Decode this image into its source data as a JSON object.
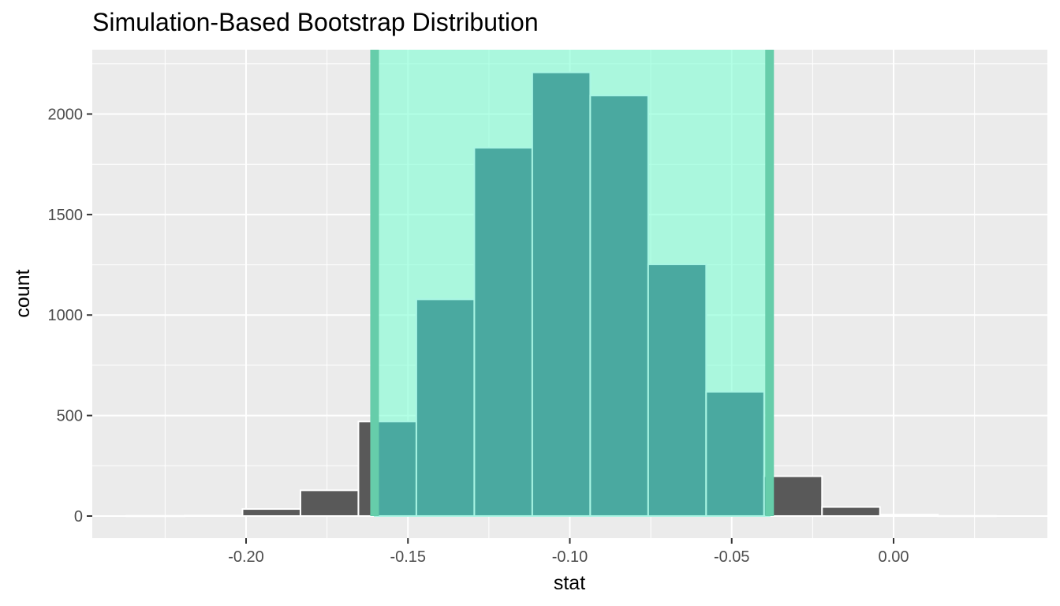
{
  "chart_data": {
    "type": "bar",
    "title": "Simulation-Based Bootstrap Distribution",
    "xlabel": "stat",
    "ylabel": "count",
    "xlim": [
      -0.2475,
      0.0475
    ],
    "ylim": [
      -110,
      2320
    ],
    "x_ticks": [
      {
        "value": -0.2,
        "label": "-0.20"
      },
      {
        "value": -0.15,
        "label": "-0.15"
      },
      {
        "value": -0.1,
        "label": "-0.10"
      },
      {
        "value": -0.05,
        "label": "-0.05"
      },
      {
        "value": 0.0,
        "label": "0.00"
      }
    ],
    "y_ticks": [
      {
        "value": 0,
        "label": "0"
      },
      {
        "value": 500,
        "label": "500"
      },
      {
        "value": 1000,
        "label": "1000"
      },
      {
        "value": 1500,
        "label": "1500"
      },
      {
        "value": 2000,
        "label": "2000"
      }
    ],
    "bins": [
      {
        "x0": -0.2369,
        "x1": -0.219,
        "count": 1
      },
      {
        "x0": -0.219,
        "x1": -0.2011,
        "count": 2
      },
      {
        "x0": -0.2011,
        "x1": -0.1832,
        "count": 35
      },
      {
        "x0": -0.1832,
        "x1": -0.1653,
        "count": 128
      },
      {
        "x0": -0.1653,
        "x1": -0.1474,
        "count": 470
      },
      {
        "x0": -0.1474,
        "x1": -0.1295,
        "count": 1078
      },
      {
        "x0": -0.1295,
        "x1": -0.1116,
        "count": 1832
      },
      {
        "x0": -0.1116,
        "x1": -0.0937,
        "count": 2207
      },
      {
        "x0": -0.0937,
        "x1": -0.0758,
        "count": 2092
      },
      {
        "x0": -0.0758,
        "x1": -0.0579,
        "count": 1252
      },
      {
        "x0": -0.0579,
        "x1": -0.04,
        "count": 618
      },
      {
        "x0": -0.04,
        "x1": -0.0221,
        "count": 198
      },
      {
        "x0": -0.0221,
        "x1": -0.0042,
        "count": 45
      },
      {
        "x0": -0.0042,
        "x1": 0.0137,
        "count": 7
      },
      {
        "x0": 0.0137,
        "x1": 0.0316,
        "count": 1
      }
    ],
    "confidence_interval": {
      "lower": -0.1603,
      "upper": -0.0383
    },
    "colors": {
      "panel_background": "#ebebeb",
      "grid": "#ffffff",
      "bar_fill": "#595959",
      "bar_outline": "#ffffff",
      "ci_fill": "#7fffd4",
      "ci_bar_outline": "#a8f5e3",
      "ci_bar_fill": "#4aa9a0",
      "ci_border": "#66cdaa"
    },
    "grid": true,
    "legend": "none"
  }
}
